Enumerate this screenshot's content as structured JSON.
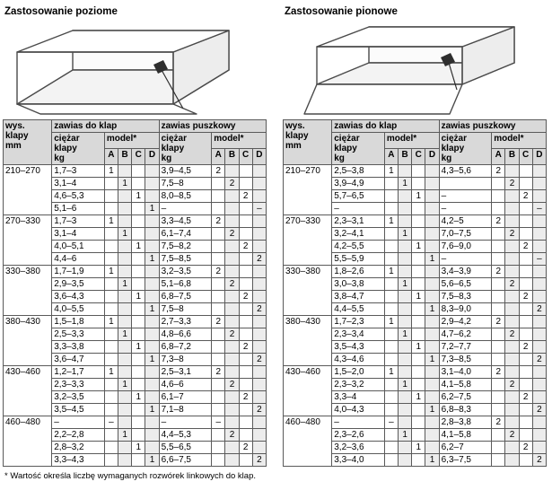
{
  "footnote": "* Wartość określa liczbę wymaganych rozwórek linkowych do klap.",
  "panels": [
    {
      "title": "Zastosowanie poziome",
      "drawing_icon": "cabinet-horizontal-flap-icon",
      "table": {
        "headers": {
          "height_label": "wys. klapy",
          "height_unit": "mm",
          "group_flap": "zawias do klap",
          "group_cup": "zawias puszkowy",
          "weight_label": "ciężar klapy",
          "weight_unit": "kg",
          "model_label": "model*",
          "model_cols": [
            "A",
            "B",
            "C",
            "D"
          ]
        },
        "groups": [
          {
            "height": "210–270",
            "rows": [
              {
                "w1": "1,7–3",
                "m1": [
                  "1",
                  "",
                  "",
                  ""
                ],
                "w2": "3,9–4,5",
                "m2": [
                  "2",
                  "",
                  "",
                  ""
                ]
              },
              {
                "w1": "3,1–4",
                "m1": [
                  "",
                  "1",
                  "",
                  ""
                ],
                "w2": "7,5–8",
                "m2": [
                  "",
                  "2",
                  "",
                  ""
                ]
              },
              {
                "w1": "4,6–5,3",
                "m1": [
                  "",
                  "",
                  "1",
                  ""
                ],
                "w2": "8,0–8,5",
                "m2": [
                  "",
                  "",
                  "2",
                  ""
                ]
              },
              {
                "w1": "5,1–6",
                "m1": [
                  "",
                  "",
                  "",
                  "1"
                ],
                "w2": "–",
                "m2": [
                  "",
                  "",
                  "",
                  "–"
                ]
              }
            ]
          },
          {
            "height": "270–330",
            "rows": [
              {
                "w1": "1,7–3",
                "m1": [
                  "1",
                  "",
                  "",
                  ""
                ],
                "w2": "3,3–4,5",
                "m2": [
                  "2",
                  "",
                  "",
                  ""
                ]
              },
              {
                "w1": "3,1–4",
                "m1": [
                  "",
                  "1",
                  "",
                  ""
                ],
                "w2": "6,1–7,4",
                "m2": [
                  "",
                  "2",
                  "",
                  ""
                ]
              },
              {
                "w1": "4,0–5,1",
                "m1": [
                  "",
                  "",
                  "1",
                  ""
                ],
                "w2": "7,5–8,2",
                "m2": [
                  "",
                  "",
                  "2",
                  ""
                ]
              },
              {
                "w1": "4,4–6",
                "m1": [
                  "",
                  "",
                  "",
                  "1"
                ],
                "w2": "7,5–8,5",
                "m2": [
                  "",
                  "",
                  "",
                  "2"
                ]
              }
            ]
          },
          {
            "height": "330–380",
            "rows": [
              {
                "w1": "1,7–1,9",
                "m1": [
                  "1",
                  "",
                  "",
                  ""
                ],
                "w2": "3,2–3,5",
                "m2": [
                  "2",
                  "",
                  "",
                  ""
                ]
              },
              {
                "w1": "2,9–3,5",
                "m1": [
                  "",
                  "1",
                  "",
                  ""
                ],
                "w2": "5,1–6,8",
                "m2": [
                  "",
                  "2",
                  "",
                  ""
                ]
              },
              {
                "w1": "3,6–4,3",
                "m1": [
                  "",
                  "",
                  "1",
                  ""
                ],
                "w2": "6,8–7,5",
                "m2": [
                  "",
                  "",
                  "2",
                  ""
                ]
              },
              {
                "w1": "4,0–5,5",
                "m1": [
                  "",
                  "",
                  "",
                  "1"
                ],
                "w2": "7,5–8",
                "m2": [
                  "",
                  "",
                  "",
                  "2"
                ]
              }
            ]
          },
          {
            "height": "380–430",
            "rows": [
              {
                "w1": "1,5–1,8",
                "m1": [
                  "1",
                  "",
                  "",
                  ""
                ],
                "w2": "2,7–3,3",
                "m2": [
                  "2",
                  "",
                  "",
                  ""
                ]
              },
              {
                "w1": "2,5–3,3",
                "m1": [
                  "",
                  "1",
                  "",
                  ""
                ],
                "w2": "4,8–6,6",
                "m2": [
                  "",
                  "2",
                  "",
                  ""
                ]
              },
              {
                "w1": "3,3–3,8",
                "m1": [
                  "",
                  "",
                  "1",
                  ""
                ],
                "w2": "6,8–7,2",
                "m2": [
                  "",
                  "",
                  "2",
                  ""
                ]
              },
              {
                "w1": "3,6–4,7",
                "m1": [
                  "",
                  "",
                  "",
                  "1"
                ],
                "w2": "7,3–8",
                "m2": [
                  "",
                  "",
                  "",
                  "2"
                ]
              }
            ]
          },
          {
            "height": "430–460",
            "rows": [
              {
                "w1": "1,2–1,7",
                "m1": [
                  "1",
                  "",
                  "",
                  ""
                ],
                "w2": "2,5–3,1",
                "m2": [
                  "2",
                  "",
                  "",
                  ""
                ]
              },
              {
                "w1": "2,3–3,3",
                "m1": [
                  "",
                  "1",
                  "",
                  ""
                ],
                "w2": "4,6–6",
                "m2": [
                  "",
                  "2",
                  "",
                  ""
                ]
              },
              {
                "w1": "3,2–3,5",
                "m1": [
                  "",
                  "",
                  "1",
                  ""
                ],
                "w2": "6,1–7",
                "m2": [
                  "",
                  "",
                  "2",
                  ""
                ]
              },
              {
                "w1": "3,5–4,5",
                "m1": [
                  "",
                  "",
                  "",
                  "1"
                ],
                "w2": "7,1–8",
                "m2": [
                  "",
                  "",
                  "",
                  "2"
                ]
              }
            ]
          },
          {
            "height": "460–480",
            "rows": [
              {
                "w1": "–",
                "m1": [
                  "–",
                  "",
                  "",
                  ""
                ],
                "w2": "–",
                "m2": [
                  "–",
                  "",
                  "",
                  ""
                ]
              },
              {
                "w1": "2,2–2,8",
                "m1": [
                  "",
                  "1",
                  "",
                  ""
                ],
                "w2": "4,4–5,3",
                "m2": [
                  "",
                  "2",
                  "",
                  ""
                ]
              },
              {
                "w1": "2,8–3,2",
                "m1": [
                  "",
                  "",
                  "1",
                  ""
                ],
                "w2": "5,5–6,5",
                "m2": [
                  "",
                  "",
                  "2",
                  ""
                ]
              },
              {
                "w1": "3,3–4,3",
                "m1": [
                  "",
                  "",
                  "",
                  "1"
                ],
                "w2": "6,6–7,5",
                "m2": [
                  "",
                  "",
                  "",
                  "2"
                ]
              }
            ]
          }
        ]
      }
    },
    {
      "title": "Zastosowanie pionowe",
      "drawing_icon": "cabinet-vertical-flap-icon",
      "table": {
        "headers": {
          "height_label": "wys. klapy",
          "height_unit": "mm",
          "group_flap": "zawias do klap",
          "group_cup": "zawias puszkowy",
          "weight_label": "ciężar klapy",
          "weight_unit": "kg",
          "model_label": "model*",
          "model_cols": [
            "A",
            "B",
            "C",
            "D"
          ]
        },
        "groups": [
          {
            "height": "210–270",
            "rows": [
              {
                "w1": "2,5–3,8",
                "m1": [
                  "1",
                  "",
                  "",
                  ""
                ],
                "w2": "4,3–5,6",
                "m2": [
                  "2",
                  "",
                  "",
                  ""
                ]
              },
              {
                "w1": "3,9–4,9",
                "m1": [
                  "",
                  "1",
                  "",
                  ""
                ],
                "w2": "",
                "m2": [
                  "",
                  "2",
                  "",
                  ""
                ]
              },
              {
                "w1": "5,7–6,5",
                "m1": [
                  "",
                  "",
                  "1",
                  ""
                ],
                "w2": "–",
                "m2": [
                  "",
                  "",
                  "2",
                  ""
                ]
              },
              {
                "w1": "–",
                "m1": [
                  "",
                  "",
                  "",
                  ""
                ],
                "w2": "–",
                "m2": [
                  "",
                  "",
                  "",
                  "–"
                ]
              }
            ]
          },
          {
            "height": "270–330",
            "rows": [
              {
                "w1": "2,3–3,1",
                "m1": [
                  "1",
                  "",
                  "",
                  ""
                ],
                "w2": "4,2–5",
                "m2": [
                  "2",
                  "",
                  "",
                  ""
                ]
              },
              {
                "w1": "3,2–4,1",
                "m1": [
                  "",
                  "1",
                  "",
                  ""
                ],
                "w2": "7,0–7,5",
                "m2": [
                  "",
                  "2",
                  "",
                  ""
                ]
              },
              {
                "w1": "4,2–5,5",
                "m1": [
                  "",
                  "",
                  "1",
                  ""
                ],
                "w2": "7,6–9,0",
                "m2": [
                  "",
                  "",
                  "2",
                  ""
                ]
              },
              {
                "w1": "5,5–5,9",
                "m1": [
                  "",
                  "",
                  "",
                  "1"
                ],
                "w2": "–",
                "m2": [
                  "",
                  "",
                  "",
                  "–"
                ]
              }
            ]
          },
          {
            "height": "330–380",
            "rows": [
              {
                "w1": "1,8–2,6",
                "m1": [
                  "1",
                  "",
                  "",
                  ""
                ],
                "w2": "3,4–3,9",
                "m2": [
                  "2",
                  "",
                  "",
                  ""
                ]
              },
              {
                "w1": "3,0–3,8",
                "m1": [
                  "",
                  "1",
                  "",
                  ""
                ],
                "w2": "5,6–6,5",
                "m2": [
                  "",
                  "2",
                  "",
                  ""
                ]
              },
              {
                "w1": "3,8–4,7",
                "m1": [
                  "",
                  "",
                  "1",
                  ""
                ],
                "w2": "7,5–8,3",
                "m2": [
                  "",
                  "",
                  "2",
                  ""
                ]
              },
              {
                "w1": "4,4–5,5",
                "m1": [
                  "",
                  "",
                  "",
                  "1"
                ],
                "w2": "8,3–9,0",
                "m2": [
                  "",
                  "",
                  "",
                  "2"
                ]
              }
            ]
          },
          {
            "height": "380–430",
            "rows": [
              {
                "w1": "1,7–2,3",
                "m1": [
                  "1",
                  "",
                  "",
                  ""
                ],
                "w2": "2,9–4,2",
                "m2": [
                  "2",
                  "",
                  "",
                  ""
                ]
              },
              {
                "w1": "2,3–3,4",
                "m1": [
                  "",
                  "1",
                  "",
                  ""
                ],
                "w2": "4,7–6,2",
                "m2": [
                  "",
                  "2",
                  "",
                  ""
                ]
              },
              {
                "w1": "3,5–4,3",
                "m1": [
                  "",
                  "",
                  "1",
                  ""
                ],
                "w2": "7,2–7,7",
                "m2": [
                  "",
                  "",
                  "2",
                  ""
                ]
              },
              {
                "w1": "4,3–4,6",
                "m1": [
                  "",
                  "",
                  "",
                  "1"
                ],
                "w2": "7,3–8,5",
                "m2": [
                  "",
                  "",
                  "",
                  "2"
                ]
              }
            ]
          },
          {
            "height": "430–460",
            "rows": [
              {
                "w1": "1,5–2,0",
                "m1": [
                  "1",
                  "",
                  "",
                  ""
                ],
                "w2": "3,1–4,0",
                "m2": [
                  "2",
                  "",
                  "",
                  ""
                ]
              },
              {
                "w1": "2,3–3,2",
                "m1": [
                  "",
                  "1",
                  "",
                  ""
                ],
                "w2": "4,1–5,8",
                "m2": [
                  "",
                  "2",
                  "",
                  ""
                ]
              },
              {
                "w1": "3,3–4",
                "m1": [
                  "",
                  "",
                  "1",
                  ""
                ],
                "w2": "6,2–7,5",
                "m2": [
                  "",
                  "",
                  "2",
                  ""
                ]
              },
              {
                "w1": "4,0–4,3",
                "m1": [
                  "",
                  "",
                  "",
                  "1"
                ],
                "w2": "6,8–8,3",
                "m2": [
                  "",
                  "",
                  "",
                  "2"
                ]
              }
            ]
          },
          {
            "height": "460–480",
            "rows": [
              {
                "w1": "–",
                "m1": [
                  "–",
                  "",
                  "",
                  ""
                ],
                "w2": "2,8–3,8",
                "m2": [
                  "2",
                  "",
                  "",
                  ""
                ]
              },
              {
                "w1": "2,3–2,6",
                "m1": [
                  "",
                  "1",
                  "",
                  ""
                ],
                "w2": "4,1–5,8",
                "m2": [
                  "",
                  "2",
                  "",
                  ""
                ]
              },
              {
                "w1": "3,2–3,6",
                "m1": [
                  "",
                  "",
                  "1",
                  ""
                ],
                "w2": "6,2–7",
                "m2": [
                  "",
                  "",
                  "2",
                  ""
                ]
              },
              {
                "w1": "3,3–4,0",
                "m1": [
                  "",
                  "",
                  "",
                  "1"
                ],
                "w2": "6,3–7,5",
                "m2": [
                  "",
                  "",
                  "",
                  "2"
                ]
              }
            ]
          }
        ]
      }
    }
  ]
}
